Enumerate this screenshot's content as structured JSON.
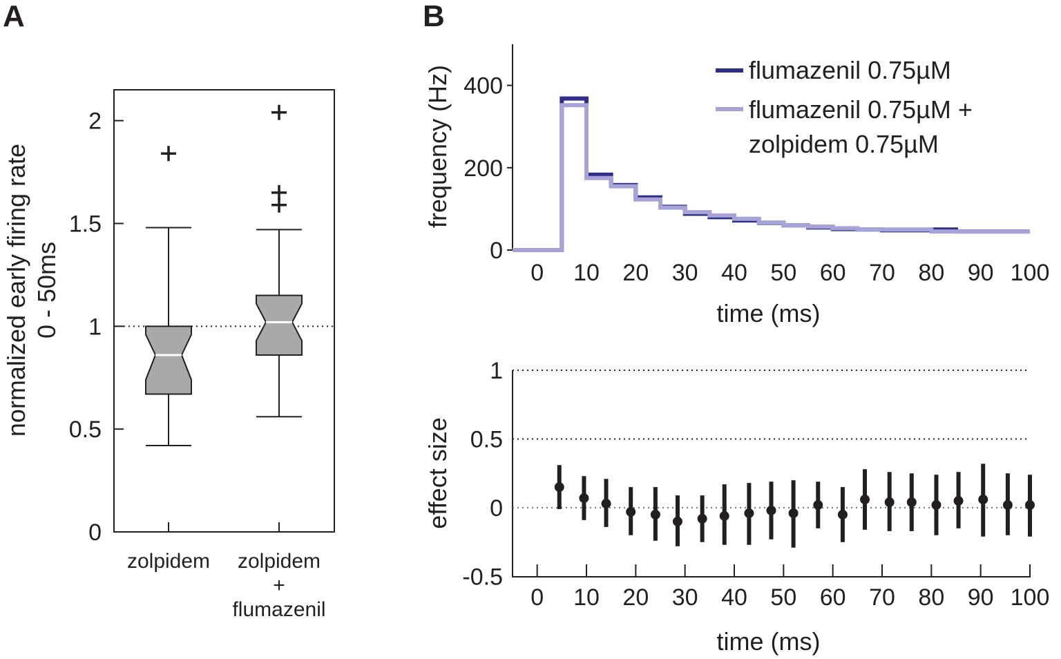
{
  "panels": {
    "a": "A",
    "b": "B"
  },
  "chart_data": [
    {
      "type": "box",
      "panel": "A",
      "ylabel_line1": "normalized early firing rate",
      "ylabel_line2": "0 - 50ms",
      "ylim": [
        0,
        2.15
      ],
      "yticks": [
        0,
        0.5,
        1,
        1.5,
        2
      ],
      "ytick_labels": [
        "0",
        "0.5",
        "1",
        "1.5",
        "2"
      ],
      "reference_line": 1,
      "boxes": [
        {
          "label_lines": [
            "zolpidem"
          ],
          "whisker_low": 0.42,
          "q1": 0.67,
          "median": 0.86,
          "q3": 1.0,
          "whisker_high": 1.48,
          "notch_low": 0.74,
          "notch_high": 0.96,
          "outliers": [
            1.84
          ]
        },
        {
          "label_lines": [
            "zolpidem",
            "+",
            "flumazenil"
          ],
          "whisker_low": 0.56,
          "q1": 0.86,
          "median": 1.02,
          "q3": 1.15,
          "whisker_high": 1.47,
          "notch_low": 0.93,
          "notch_high": 1.11,
          "outliers": [
            2.04,
            1.65,
            1.59
          ]
        }
      ]
    },
    {
      "type": "line",
      "panel": "B-top",
      "xlabel": "time (ms)",
      "ylabel": "frequency (Hz)",
      "xlim": [
        -5,
        100
      ],
      "ylim": [
        0,
        500
      ],
      "xticks": [
        0,
        10,
        20,
        30,
        40,
        50,
        60,
        70,
        80,
        90,
        100
      ],
      "xtick_labels": [
        "0",
        "10",
        "20",
        "30",
        "40",
        "50",
        "60",
        "70",
        "80",
        "90",
        "100"
      ],
      "yticks": [
        0,
        200,
        400
      ],
      "ytick_labels": [
        "0",
        "200",
        "400"
      ],
      "bin_edges": [
        -5,
        5,
        10,
        15,
        20,
        25,
        30,
        35,
        40,
        45,
        50,
        55,
        60,
        65,
        70,
        75,
        80,
        85,
        90,
        95,
        100
      ],
      "series": [
        {
          "name": "flumazenil 0.75µM",
          "color": "#2e2e86",
          "values": [
            0,
            368,
            183,
            158,
            128,
            105,
            88,
            80,
            72,
            66,
            60,
            55,
            51,
            50,
            48,
            48,
            50,
            45,
            45,
            45
          ]
        },
        {
          "name": "flumazenil 0.75µM + zolpidem 0.75µM",
          "name_line1": "flumazenil 0.75µM +",
          "name_line2": "zolpidem 0.75µM",
          "color": "#a7a3d9",
          "values": [
            0,
            352,
            175,
            155,
            123,
            103,
            92,
            84,
            76,
            67,
            60,
            57,
            53,
            50,
            50,
            50,
            45,
            45,
            45,
            45
          ]
        }
      ]
    },
    {
      "type": "errorbar",
      "panel": "B-bottom",
      "xlabel": "time (ms)",
      "ylabel": "effect size",
      "xlim": [
        -5,
        100
      ],
      "ylim": [
        -0.5,
        1.05
      ],
      "xticks": [
        0,
        10,
        20,
        30,
        40,
        50,
        60,
        70,
        80,
        90,
        100
      ],
      "xtick_labels": [
        "0",
        "10",
        "20",
        "30",
        "40",
        "50",
        "60",
        "70",
        "80",
        "90",
        "100"
      ],
      "yticks": [
        -0.5,
        0,
        0.5,
        1
      ],
      "ytick_labels": [
        "-0.5",
        "0",
        "0.5",
        "1"
      ],
      "reference_lines": [
        0,
        0.5,
        1
      ],
      "x": [
        4.5,
        9.5,
        14,
        19,
        24,
        28.5,
        33.5,
        38,
        43,
        47.5,
        52,
        57,
        62,
        66.5,
        71.5,
        76,
        81,
        85.5,
        90.5,
        95.5,
        100
      ],
      "y": [
        0.15,
        0.07,
        0.03,
        -0.03,
        -0.05,
        -0.1,
        -0.08,
        -0.06,
        -0.04,
        -0.02,
        -0.04,
        0.02,
        -0.05,
        0.06,
        0.04,
        0.04,
        0.02,
        0.05,
        0.06,
        0.02,
        0.02
      ],
      "err_low": [
        -0.01,
        -0.09,
        -0.14,
        -0.2,
        -0.24,
        -0.28,
        -0.25,
        -0.27,
        -0.27,
        -0.23,
        -0.29,
        -0.15,
        -0.25,
        -0.16,
        -0.17,
        -0.17,
        -0.2,
        -0.15,
        -0.21,
        -0.2,
        -0.21
      ],
      "err_high": [
        0.31,
        0.23,
        0.21,
        0.15,
        0.15,
        0.09,
        0.09,
        0.17,
        0.18,
        0.19,
        0.2,
        0.19,
        0.15,
        0.28,
        0.26,
        0.25,
        0.24,
        0.26,
        0.32,
        0.25,
        0.24
      ]
    }
  ]
}
